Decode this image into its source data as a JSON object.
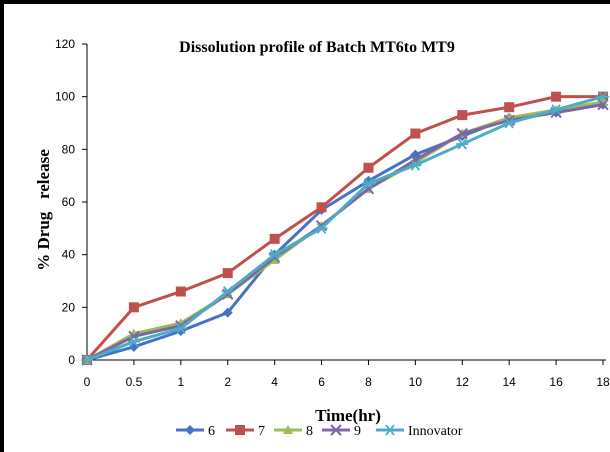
{
  "chart_data": {
    "type": "line",
    "title": "Dissolution profile of Batch MT6to MT9",
    "xlabel": "Time(hr)",
    "ylabel": "% Drug   release",
    "categories": [
      "0",
      "0.5",
      "1",
      "2",
      "4",
      "6",
      "8",
      "10",
      "12",
      "14",
      "16",
      "18"
    ],
    "ylim": [
      0,
      120
    ],
    "yticks": [
      0,
      20,
      40,
      60,
      80,
      100,
      120
    ],
    "grid": false,
    "legend_position": "bottom",
    "series": [
      {
        "name": "6",
        "color": "#4472C4",
        "marker": "diamond",
        "values": [
          0,
          5,
          11,
          18,
          40,
          57,
          68,
          78,
          85,
          92,
          94,
          97
        ]
      },
      {
        "name": "7",
        "color": "#C0504D",
        "marker": "square",
        "values": [
          0,
          20,
          26,
          33,
          46,
          58,
          73,
          86,
          93,
          96,
          100,
          100
        ]
      },
      {
        "name": "8",
        "color": "#9BBB59",
        "marker": "triangle",
        "values": [
          0,
          10,
          14,
          25,
          38,
          51,
          65,
          75,
          86,
          92,
          95,
          98
        ]
      },
      {
        "name": "9",
        "color": "#8064A2",
        "marker": "x",
        "values": [
          0,
          9,
          13,
          25,
          39,
          51,
          65,
          76,
          86,
          91,
          94,
          97
        ]
      },
      {
        "name": "Innovator",
        "color": "#4BACC6",
        "marker": "star",
        "values": [
          0,
          7,
          12,
          26,
          40,
          50,
          67,
          74,
          82,
          90,
          95,
          100
        ]
      }
    ]
  }
}
